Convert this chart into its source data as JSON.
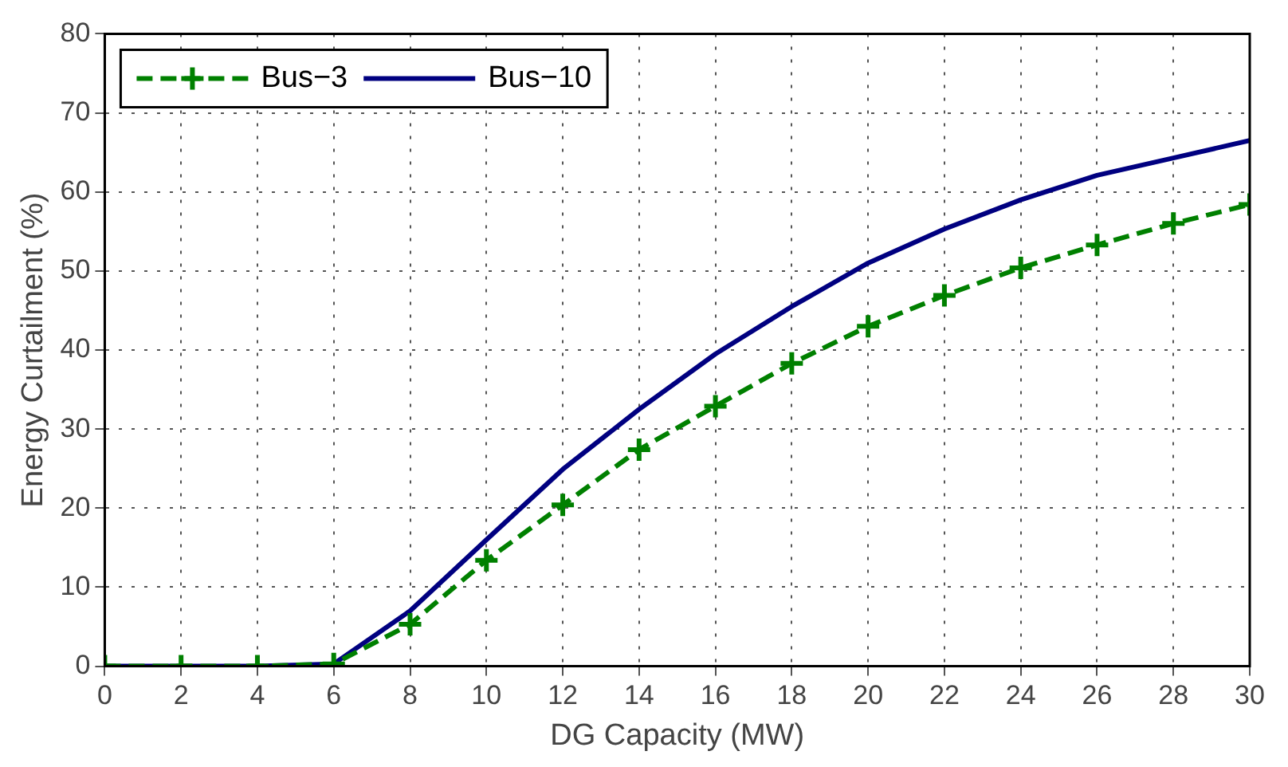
{
  "chart_data": {
    "type": "line",
    "xlabel": "DG Capacity (MW)",
    "ylabel": "Energy Curtailment (%)",
    "x": [
      0,
      2,
      4,
      6,
      8,
      10,
      12,
      14,
      16,
      18,
      20,
      22,
      24,
      26,
      28,
      30
    ],
    "series": [
      {
        "name": "Bus−3",
        "color": "#008000",
        "line_style": "dashed",
        "marker": "cross",
        "values": [
          0,
          0,
          0,
          0.3,
          5.3,
          13.4,
          20.4,
          27.4,
          32.9,
          38.3,
          43,
          46.9,
          50.4,
          53.3,
          56,
          58.4
        ]
      },
      {
        "name": "Bus−10",
        "color": "#000080",
        "line_style": "solid",
        "marker": "none",
        "values": [
          0,
          0,
          0,
          0.3,
          7,
          16,
          24.9,
          32.5,
          39.5,
          45.5,
          51,
          55.3,
          59,
          62.1,
          64.3,
          66.5
        ]
      }
    ],
    "xlim": [
      0,
      30
    ],
    "xticks": [
      0,
      2,
      4,
      6,
      8,
      10,
      12,
      14,
      16,
      18,
      20,
      22,
      24,
      26,
      28,
      30
    ],
    "ylim": [
      0,
      80
    ],
    "yticks": [
      0,
      10,
      20,
      30,
      40,
      50,
      60,
      70,
      80
    ],
    "grid": true,
    "legend": "top left"
  }
}
